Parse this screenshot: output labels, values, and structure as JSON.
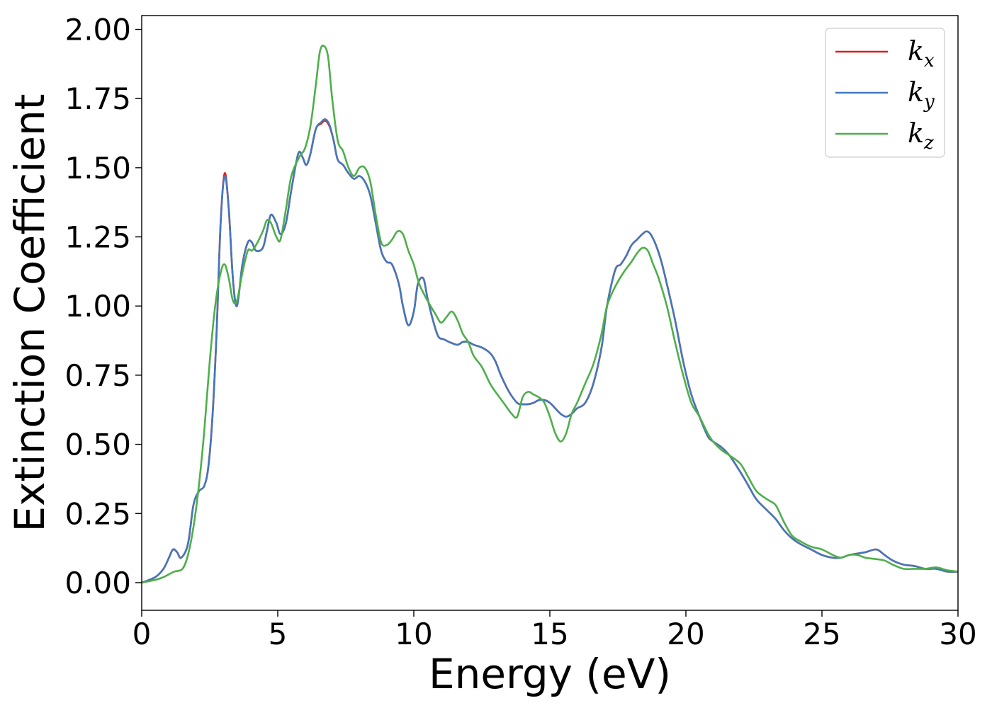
{
  "chart_data": {
    "type": "line",
    "title": "",
    "xlabel": "Energy (eV)",
    "ylabel": "Extinction Coefficient",
    "xlim": [
      0,
      30
    ],
    "ylim": [
      -0.1,
      2.05
    ],
    "xticks": [
      0,
      5,
      10,
      15,
      20,
      25,
      30
    ],
    "xtick_labels": [
      "0",
      "5",
      "10",
      "15",
      "20",
      "25",
      "30"
    ],
    "yticks": [
      0.0,
      0.25,
      0.5,
      0.75,
      1.0,
      1.25,
      1.5,
      1.75,
      2.0
    ],
    "ytick_labels": [
      "0.00",
      "0.25",
      "0.50",
      "0.75",
      "1.00",
      "1.25",
      "1.50",
      "1.75",
      "2.00"
    ],
    "grid": false,
    "legend_position": "top-right",
    "series": [
      {
        "name": "k",
        "subscript": "x",
        "color": "#e41a1c",
        "x": [
          0,
          0.5,
          0.8,
          1.0,
          1.15,
          1.3,
          1.45,
          1.7,
          1.9,
          2.1,
          2.3,
          2.45,
          2.6,
          2.75,
          2.9,
          3.05,
          3.2,
          3.35,
          3.5,
          3.7,
          3.9,
          4.05,
          4.2,
          4.45,
          4.6,
          4.75,
          4.95,
          5.1,
          5.3,
          5.5,
          5.75,
          5.9,
          6.05,
          6.2,
          6.4,
          6.6,
          6.75,
          6.9,
          7.05,
          7.2,
          7.4,
          7.6,
          7.8,
          8.0,
          8.2,
          8.4,
          8.6,
          8.8,
          9.0,
          9.2,
          9.45,
          9.6,
          9.8,
          10.0,
          10.15,
          10.35,
          10.5,
          10.7,
          10.9,
          11.1,
          11.3,
          11.6,
          11.8,
          12.0,
          12.2,
          12.5,
          12.8,
          13.0,
          13.2,
          13.5,
          13.8,
          14.0,
          14.2,
          14.4,
          14.6,
          14.8,
          15.0,
          15.2,
          15.4,
          15.6,
          15.8,
          16.0,
          16.3,
          16.6,
          16.9,
          17.1,
          17.4,
          17.6,
          17.8,
          18.0,
          18.2,
          18.4,
          18.55,
          18.7,
          18.9,
          19.1,
          19.3,
          19.6,
          19.9,
          20.2,
          20.5,
          20.8,
          21.0,
          21.3,
          21.6,
          22.0,
          22.3,
          22.6,
          23.0,
          23.3,
          23.6,
          23.9,
          24.2,
          24.6,
          25.0,
          25.4,
          25.7,
          26.0,
          26.3,
          26.6,
          27.0,
          27.3,
          27.6,
          28.0,
          28.4,
          28.8,
          29.2,
          29.6,
          30.0
        ],
        "y": [
          0.0,
          0.02,
          0.05,
          0.09,
          0.12,
          0.11,
          0.09,
          0.14,
          0.28,
          0.33,
          0.35,
          0.42,
          0.6,
          0.9,
          1.3,
          1.48,
          1.35,
          1.1,
          1.0,
          1.15,
          1.23,
          1.23,
          1.2,
          1.21,
          1.27,
          1.33,
          1.3,
          1.26,
          1.3,
          1.42,
          1.55,
          1.54,
          1.51,
          1.55,
          1.64,
          1.66,
          1.67,
          1.65,
          1.6,
          1.53,
          1.51,
          1.48,
          1.46,
          1.47,
          1.45,
          1.4,
          1.3,
          1.2,
          1.16,
          1.15,
          1.08,
          1.0,
          0.93,
          0.98,
          1.08,
          1.1,
          1.03,
          0.95,
          0.89,
          0.88,
          0.87,
          0.86,
          0.87,
          0.87,
          0.86,
          0.85,
          0.83,
          0.8,
          0.75,
          0.69,
          0.65,
          0.645,
          0.645,
          0.65,
          0.66,
          0.66,
          0.65,
          0.63,
          0.61,
          0.6,
          0.61,
          0.63,
          0.65,
          0.72,
          0.85,
          1.0,
          1.13,
          1.15,
          1.18,
          1.22,
          1.24,
          1.26,
          1.27,
          1.26,
          1.22,
          1.16,
          1.08,
          0.95,
          0.8,
          0.68,
          0.6,
          0.53,
          0.51,
          0.49,
          0.46,
          0.4,
          0.35,
          0.3,
          0.26,
          0.23,
          0.19,
          0.16,
          0.14,
          0.12,
          0.1,
          0.09,
          0.09,
          0.1,
          0.105,
          0.11,
          0.12,
          0.1,
          0.08,
          0.065,
          0.06,
          0.05,
          0.05,
          0.04,
          0.04
        ]
      },
      {
        "name": "k",
        "subscript": "y",
        "color": "#4477bb",
        "x": [
          0,
          0.5,
          0.8,
          1.0,
          1.15,
          1.3,
          1.45,
          1.7,
          1.9,
          2.1,
          2.3,
          2.45,
          2.6,
          2.75,
          2.9,
          3.05,
          3.2,
          3.35,
          3.5,
          3.7,
          3.9,
          4.05,
          4.2,
          4.45,
          4.6,
          4.75,
          4.95,
          5.1,
          5.3,
          5.5,
          5.75,
          5.9,
          6.05,
          6.2,
          6.4,
          6.6,
          6.75,
          6.9,
          7.05,
          7.2,
          7.4,
          7.6,
          7.8,
          8.0,
          8.2,
          8.4,
          8.6,
          8.8,
          9.0,
          9.2,
          9.45,
          9.6,
          9.8,
          10.0,
          10.15,
          10.35,
          10.5,
          10.7,
          10.9,
          11.1,
          11.3,
          11.6,
          11.8,
          12.0,
          12.2,
          12.5,
          12.8,
          13.0,
          13.2,
          13.5,
          13.8,
          14.0,
          14.2,
          14.4,
          14.6,
          14.8,
          15.0,
          15.2,
          15.4,
          15.6,
          15.8,
          16.0,
          16.3,
          16.6,
          16.9,
          17.1,
          17.4,
          17.6,
          17.8,
          18.0,
          18.2,
          18.4,
          18.55,
          18.7,
          18.9,
          19.1,
          19.3,
          19.6,
          19.9,
          20.2,
          20.5,
          20.8,
          21.0,
          21.3,
          21.6,
          22.0,
          22.3,
          22.6,
          23.0,
          23.3,
          23.6,
          23.9,
          24.2,
          24.6,
          25.0,
          25.4,
          25.7,
          26.0,
          26.3,
          26.6,
          27.0,
          27.3,
          27.6,
          28.0,
          28.4,
          28.8,
          29.2,
          29.6,
          30.0
        ],
        "y": [
          0.0,
          0.02,
          0.05,
          0.09,
          0.12,
          0.11,
          0.09,
          0.14,
          0.28,
          0.33,
          0.35,
          0.42,
          0.6,
          0.9,
          1.3,
          1.47,
          1.35,
          1.1,
          1.0,
          1.15,
          1.23,
          1.23,
          1.2,
          1.21,
          1.27,
          1.33,
          1.3,
          1.26,
          1.3,
          1.42,
          1.55,
          1.54,
          1.51,
          1.55,
          1.64,
          1.665,
          1.675,
          1.655,
          1.6,
          1.53,
          1.51,
          1.48,
          1.46,
          1.47,
          1.45,
          1.4,
          1.3,
          1.2,
          1.16,
          1.15,
          1.08,
          1.0,
          0.93,
          0.98,
          1.08,
          1.1,
          1.03,
          0.95,
          0.89,
          0.88,
          0.87,
          0.86,
          0.87,
          0.87,
          0.86,
          0.85,
          0.83,
          0.8,
          0.75,
          0.69,
          0.65,
          0.645,
          0.645,
          0.65,
          0.66,
          0.66,
          0.65,
          0.63,
          0.61,
          0.6,
          0.61,
          0.63,
          0.65,
          0.72,
          0.85,
          1.0,
          1.13,
          1.15,
          1.18,
          1.22,
          1.24,
          1.26,
          1.27,
          1.26,
          1.22,
          1.16,
          1.08,
          0.95,
          0.8,
          0.68,
          0.6,
          0.53,
          0.51,
          0.49,
          0.46,
          0.4,
          0.35,
          0.3,
          0.26,
          0.23,
          0.19,
          0.16,
          0.14,
          0.12,
          0.1,
          0.09,
          0.09,
          0.1,
          0.105,
          0.11,
          0.12,
          0.1,
          0.08,
          0.065,
          0.06,
          0.05,
          0.05,
          0.04,
          0.04
        ]
      },
      {
        "name": "k",
        "subscript": "z",
        "color": "#4daf4a",
        "x": [
          0,
          0.5,
          0.8,
          1.0,
          1.2,
          1.5,
          1.7,
          1.9,
          2.1,
          2.3,
          2.5,
          2.7,
          2.9,
          3.05,
          3.2,
          3.35,
          3.5,
          3.7,
          3.9,
          4.05,
          4.2,
          4.45,
          4.6,
          4.75,
          4.95,
          5.1,
          5.3,
          5.5,
          5.8,
          6.0,
          6.2,
          6.4,
          6.55,
          6.7,
          6.85,
          7.0,
          7.2,
          7.4,
          7.6,
          7.8,
          8.0,
          8.2,
          8.4,
          8.6,
          8.8,
          9.0,
          9.2,
          9.4,
          9.6,
          9.8,
          10.0,
          10.2,
          10.5,
          10.8,
          11.0,
          11.2,
          11.4,
          11.6,
          11.8,
          12.0,
          12.2,
          12.5,
          12.8,
          13.0,
          13.3,
          13.6,
          13.8,
          14.0,
          14.2,
          14.4,
          14.6,
          14.8,
          15.0,
          15.2,
          15.4,
          15.6,
          15.8,
          16.0,
          16.3,
          16.6,
          16.9,
          17.1,
          17.4,
          17.7,
          18.0,
          18.2,
          18.4,
          18.6,
          18.8,
          19.0,
          19.3,
          19.6,
          19.9,
          20.2,
          20.5,
          20.8,
          21.0,
          21.3,
          21.6,
          22.0,
          22.3,
          22.6,
          23.0,
          23.3,
          23.6,
          23.9,
          24.2,
          24.6,
          25.0,
          25.4,
          25.7,
          26.0,
          26.3,
          26.6,
          27.0,
          27.3,
          27.6,
          28.0,
          28.4,
          28.8,
          29.2,
          29.6,
          30.0
        ],
        "y": [
          0.0,
          0.01,
          0.02,
          0.03,
          0.04,
          0.05,
          0.1,
          0.2,
          0.35,
          0.55,
          0.8,
          1.0,
          1.12,
          1.15,
          1.1,
          1.02,
          1.02,
          1.12,
          1.2,
          1.2,
          1.22,
          1.27,
          1.31,
          1.3,
          1.25,
          1.24,
          1.35,
          1.47,
          1.54,
          1.57,
          1.65,
          1.8,
          1.92,
          1.94,
          1.9,
          1.75,
          1.6,
          1.56,
          1.5,
          1.47,
          1.5,
          1.5,
          1.45,
          1.33,
          1.23,
          1.22,
          1.24,
          1.27,
          1.26,
          1.2,
          1.15,
          1.08,
          1.02,
          0.97,
          0.94,
          0.96,
          0.98,
          0.95,
          0.9,
          0.87,
          0.82,
          0.78,
          0.72,
          0.69,
          0.65,
          0.61,
          0.6,
          0.67,
          0.69,
          0.68,
          0.67,
          0.65,
          0.6,
          0.54,
          0.51,
          0.54,
          0.61,
          0.65,
          0.72,
          0.79,
          0.9,
          1.0,
          1.07,
          1.12,
          1.16,
          1.19,
          1.21,
          1.2,
          1.15,
          1.1,
          1.0,
          0.87,
          0.75,
          0.65,
          0.6,
          0.54,
          0.51,
          0.48,
          0.46,
          0.43,
          0.38,
          0.33,
          0.3,
          0.28,
          0.22,
          0.17,
          0.15,
          0.13,
          0.12,
          0.1,
          0.09,
          0.1,
          0.1,
          0.09,
          0.085,
          0.08,
          0.065,
          0.05,
          0.05,
          0.05,
          0.055,
          0.045,
          0.04
        ]
      }
    ]
  }
}
